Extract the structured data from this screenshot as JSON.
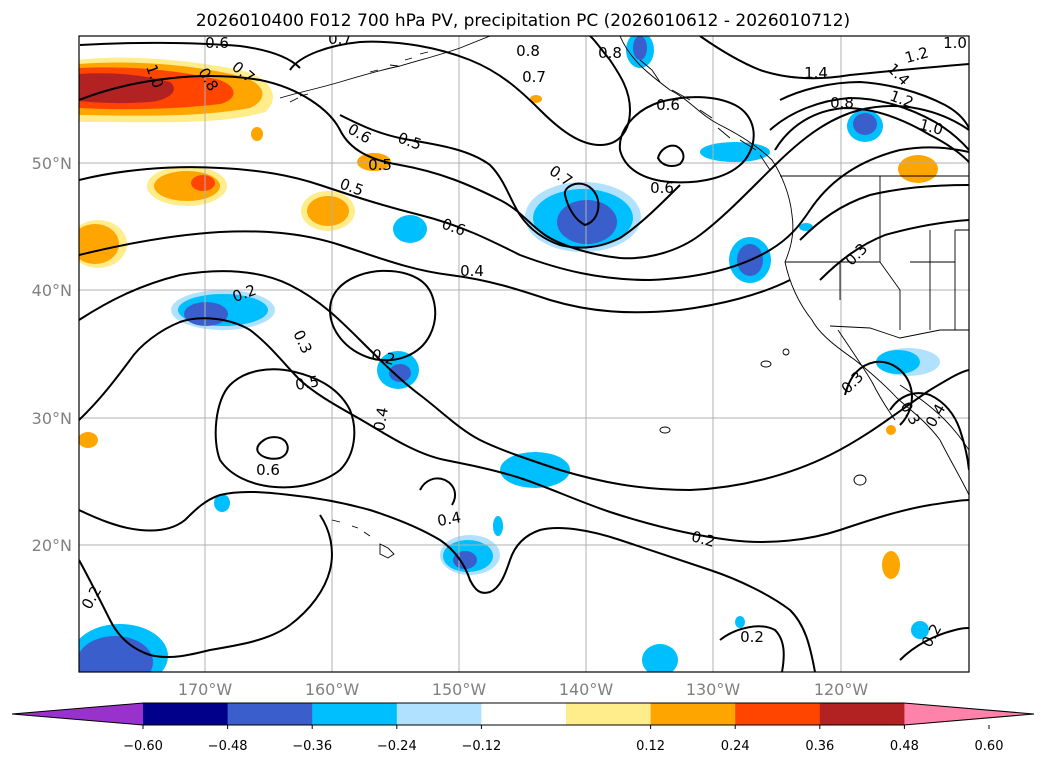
{
  "title": "2026010400 F012 700 hPa PV, precipitation PC (2026010612 - 2026010712)",
  "map": {
    "latitude_labels": [
      "50°N",
      "40°N",
      "30°N",
      "20°N"
    ],
    "longitude_labels": [
      "170°W",
      "160°W",
      "150°W",
      "140°W",
      "130°W",
      "120°W"
    ],
    "grid": true,
    "contour_labels": [
      "0.6",
      "0.7",
      "0.8",
      "1.0",
      "0.8",
      "0.7",
      "0.8",
      "0.7",
      "0.6",
      "0.5",
      "0.6",
      "0.5",
      "0.5",
      "0.6",
      "0.7",
      "0.6",
      "1.4",
      "1.2",
      "1.0",
      "1.4",
      "1.2",
      "1.0",
      "0.8",
      "0.4",
      "0.3",
      "0.2",
      "0.3",
      "0.2",
      "0.5",
      "0.4",
      "0.6",
      "0.4",
      "0.2",
      "0.3",
      "0.3",
      "0.4",
      "0.2",
      "0.2",
      "0.2"
    ]
  },
  "colorbar": {
    "tick_labels": [
      "−0.60",
      "−0.48",
      "−0.36",
      "−0.24",
      "−0.12",
      "0.12",
      "0.24",
      "0.36",
      "0.48",
      "0.60"
    ],
    "bins": [
      {
        "range": "< -0.60",
        "color": "#9932cc"
      },
      {
        "range": "-0.60 to -0.48",
        "color": "#00008b"
      },
      {
        "range": "-0.48 to -0.36",
        "color": "#3a5fcd"
      },
      {
        "range": "-0.36 to -0.24",
        "color": "#00bfff"
      },
      {
        "range": "-0.24 to -0.12",
        "color": "#b0e2ff"
      },
      {
        "range": "-0.12 to 0.12",
        "color": "#ffffff"
      },
      {
        "range": "0.12 to 0.24",
        "color": "#ffec8b"
      },
      {
        "range": "0.24 to 0.36",
        "color": "#ffa500"
      },
      {
        "range": "0.36 to 0.48",
        "color": "#ff4500"
      },
      {
        "range": "0.48 to 0.60",
        "color": "#b22222"
      },
      {
        "range": "> 0.60",
        "color": "#ff82ab"
      }
    ]
  },
  "colors": {
    "grid": "#b0b0b0",
    "contour": "#000000",
    "coast": "#000000"
  }
}
